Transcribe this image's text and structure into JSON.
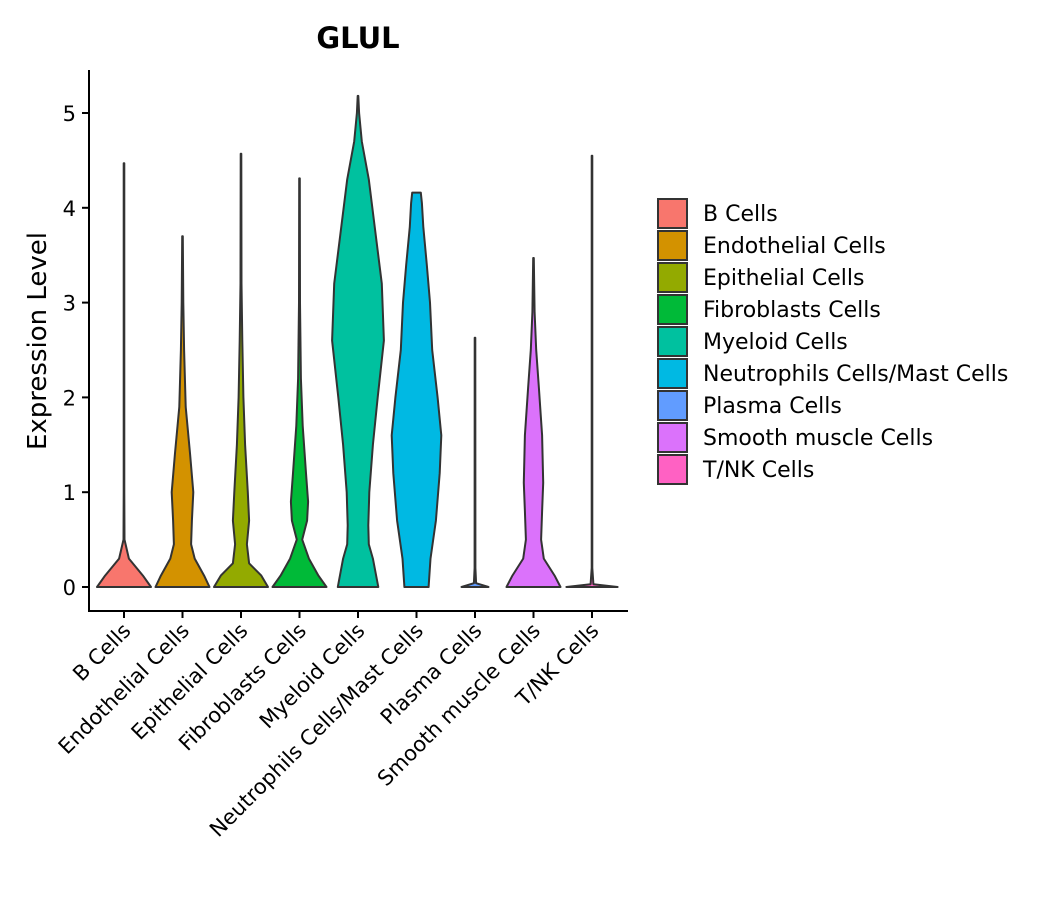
{
  "chart_data": {
    "type": "violin",
    "title": "GLUL",
    "xlabel": "",
    "ylabel": "Expression Level",
    "ylim": [
      -0.25,
      5.45
    ],
    "yticks": [
      0,
      1,
      2,
      3,
      4,
      5
    ],
    "ytick_labels": [
      "0",
      "1",
      "2",
      "3",
      "4",
      "5"
    ],
    "categories": [
      "B Cells",
      "Endothelial Cells",
      "Epithelial Cells",
      "Fibroblasts Cells",
      "Myeloid Cells",
      "Neutrophils Cells/Mast Cells",
      "Plasma Cells",
      "Smooth muscle Cells",
      "T/NK Cells"
    ],
    "colors": [
      "#F8766D",
      "#D39200",
      "#93AA00",
      "#00BA38",
      "#00C19F",
      "#00B9E3",
      "#619CFF",
      "#DB72FB",
      "#FF61C3"
    ],
    "violins": [
      {
        "name": "B Cells",
        "max": 4.47,
        "profile": [
          [
            0,
            1.0
          ],
          [
            0.12,
            0.7
          ],
          [
            0.3,
            0.18
          ],
          [
            0.5,
            0.02
          ],
          [
            1.0,
            0.012
          ],
          [
            2.7,
            0.012
          ],
          [
            4.47,
            0.01
          ]
        ]
      },
      {
        "name": "Endothelial Cells",
        "max": 3.7,
        "profile": [
          [
            0,
            1.0
          ],
          [
            0.12,
            0.8
          ],
          [
            0.3,
            0.45
          ],
          [
            0.45,
            0.32
          ],
          [
            0.7,
            0.35
          ],
          [
            1.0,
            0.4
          ],
          [
            1.4,
            0.28
          ],
          [
            1.9,
            0.12
          ],
          [
            2.5,
            0.06
          ],
          [
            3.0,
            0.03
          ],
          [
            3.7,
            0.01
          ]
        ]
      },
      {
        "name": "Epithelial Cells",
        "max": 4.57,
        "profile": [
          [
            0,
            1.0
          ],
          [
            0.12,
            0.75
          ],
          [
            0.25,
            0.3
          ],
          [
            0.45,
            0.22
          ],
          [
            0.7,
            0.3
          ],
          [
            1.0,
            0.25
          ],
          [
            1.5,
            0.15
          ],
          [
            2.0,
            0.09
          ],
          [
            2.6,
            0.05
          ],
          [
            3.2,
            0.02
          ],
          [
            4.57,
            0.01
          ]
        ]
      },
      {
        "name": "Fibroblasts Cells",
        "max": 4.31,
        "profile": [
          [
            0,
            1.0
          ],
          [
            0.12,
            0.7
          ],
          [
            0.3,
            0.35
          ],
          [
            0.5,
            0.1
          ],
          [
            0.7,
            0.28
          ],
          [
            0.9,
            0.32
          ],
          [
            1.2,
            0.24
          ],
          [
            1.7,
            0.12
          ],
          [
            2.2,
            0.05
          ],
          [
            3.0,
            0.02
          ],
          [
            4.31,
            0.01
          ]
        ]
      },
      {
        "name": "Myeloid Cells",
        "max": 5.18,
        "profile": [
          [
            0,
            0.75
          ],
          [
            0.3,
            0.55
          ],
          [
            0.45,
            0.4
          ],
          [
            0.65,
            0.38
          ],
          [
            1.0,
            0.42
          ],
          [
            1.5,
            0.55
          ],
          [
            2.0,
            0.73
          ],
          [
            2.6,
            0.96
          ],
          [
            3.2,
            0.88
          ],
          [
            3.8,
            0.62
          ],
          [
            4.3,
            0.4
          ],
          [
            4.7,
            0.14
          ],
          [
            5.0,
            0.04
          ],
          [
            5.18,
            0.01
          ]
        ]
      },
      {
        "name": "Neutrophils Cells/Mast Cells",
        "max": 4.16,
        "profile": [
          [
            0,
            0.45
          ],
          [
            0.3,
            0.52
          ],
          [
            0.7,
            0.72
          ],
          [
            1.2,
            0.86
          ],
          [
            1.6,
            0.92
          ],
          [
            2.0,
            0.78
          ],
          [
            2.5,
            0.58
          ],
          [
            3.0,
            0.5
          ],
          [
            3.4,
            0.38
          ],
          [
            3.8,
            0.25
          ],
          [
            4.05,
            0.2
          ],
          [
            4.16,
            0.16
          ]
        ]
      },
      {
        "name": "Plasma Cells",
        "max": 2.63,
        "profile": [
          [
            0,
            0.5
          ],
          [
            0.04,
            0.04
          ],
          [
            0.2,
            0.015
          ],
          [
            2.63,
            0.012
          ]
        ]
      },
      {
        "name": "Smooth muscle Cells",
        "max": 3.47,
        "profile": [
          [
            0,
            1.0
          ],
          [
            0.12,
            0.78
          ],
          [
            0.3,
            0.38
          ],
          [
            0.5,
            0.28
          ],
          [
            0.8,
            0.32
          ],
          [
            1.1,
            0.36
          ],
          [
            1.6,
            0.32
          ],
          [
            2.1,
            0.2
          ],
          [
            2.5,
            0.1
          ],
          [
            2.9,
            0.04
          ],
          [
            3.47,
            0.01
          ]
        ]
      },
      {
        "name": "T/NK Cells",
        "max": 4.55,
        "profile": [
          [
            0,
            0.95
          ],
          [
            0.03,
            0.05
          ],
          [
            0.2,
            0.012
          ],
          [
            4.55,
            0.01
          ]
        ]
      }
    ],
    "legend": {
      "position": "right",
      "entries": [
        "B Cells",
        "Endothelial Cells",
        "Epithelial Cells",
        "Fibroblasts Cells",
        "Myeloid Cells",
        "Neutrophils Cells/Mast Cells",
        "Plasma Cells",
        "Smooth muscle Cells",
        "T/NK Cells"
      ]
    }
  }
}
